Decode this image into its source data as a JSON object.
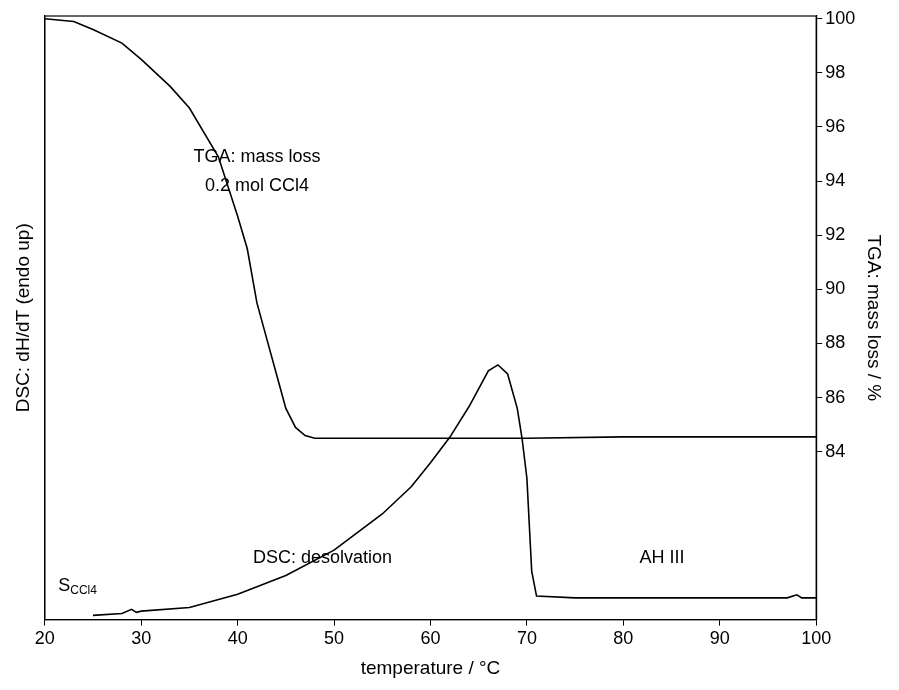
{
  "chart_data": {
    "type": "line",
    "x_label": "temperature / °C",
    "y_label": "DSC: dH/dT (endo up)",
    "y2_label": "TGA: mass loss / %",
    "xlim": [
      20,
      100
    ],
    "xticks": [
      20,
      30,
      40,
      50,
      60,
      70,
      80,
      90,
      100
    ],
    "ylim": [
      0,
      100
    ],
    "yticks": [],
    "y2lim": [
      77.8,
      100.1
    ],
    "y2ticks": [
      84,
      86,
      88,
      90,
      92,
      94,
      96,
      98,
      100
    ],
    "grid": false,
    "series": [
      {
        "color": "#000000",
        "line_style": "solid",
        "marker": "none",
        "axis": "y",
        "x": [
          25,
          28,
          29,
          29.5,
          30,
          35,
          40,
          45,
          50,
          55,
          58,
          60,
          62,
          64,
          66,
          67,
          68,
          69,
          69.5,
          70,
          70.5,
          71,
          75,
          80,
          90,
          97,
          98,
          98.5,
          100
        ],
        "values": [
          0.7,
          1.0,
          1.7,
          1.2,
          1.4,
          2.0,
          4.2,
          7.3,
          11.5,
          17.5,
          22.0,
          26.0,
          30.2,
          35.3,
          41.2,
          42.2,
          40.7,
          35.0,
          30.0,
          23.4,
          8.0,
          3.9,
          3.6,
          3.6,
          3.6,
          3.6,
          4.1,
          3.6,
          3.6
        ]
      },
      {
        "color": "#000000",
        "line_style": "solid",
        "marker": "none",
        "axis": "y2",
        "x": [
          20,
          23,
          25,
          28,
          30,
          33,
          35,
          38,
          40,
          41,
          42,
          43,
          44,
          45,
          46,
          47,
          48,
          50,
          60,
          70,
          80,
          90,
          100
        ],
        "values": [
          100.0,
          99.9,
          99.6,
          99.1,
          98.5,
          97.5,
          96.7,
          94.9,
          92.7,
          91.5,
          89.5,
          88.2,
          86.9,
          85.6,
          84.9,
          84.6,
          84.5,
          84.5,
          84.5,
          84.5,
          84.55,
          84.55,
          84.55
        ]
      }
    ],
    "annotations": [
      {
        "text": "TGA: mass loss",
        "x": 42,
        "y": 94.9,
        "axis": "y2"
      },
      {
        "text": "0.2 mol CCl4",
        "x": 42,
        "y": 93.8,
        "axis": "y2"
      },
      {
        "text": "DSC: desolvation",
        "x": 48.8,
        "y": 10.2,
        "axis": "y"
      },
      {
        "text": "AH III",
        "x": 84,
        "y": 10.2,
        "axis": "y"
      },
      {
        "text": "S",
        "subscript": "CCl4",
        "x": 23.4,
        "y": 5.6,
        "axis": "y"
      }
    ]
  }
}
